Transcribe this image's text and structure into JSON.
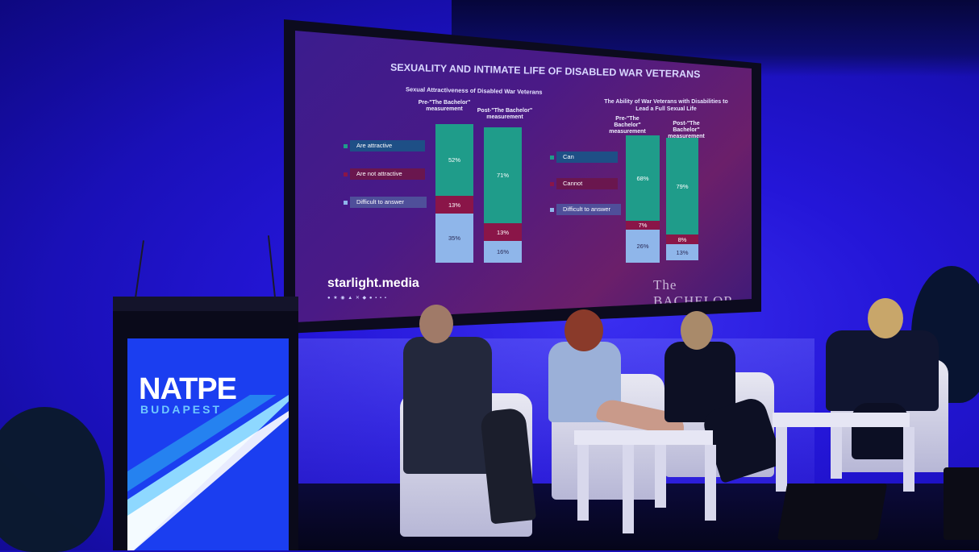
{
  "slide": {
    "title": "SEXUALITY AND INTIMATE LIFE OF DISABLED WAR VETERANS",
    "left_chart_title": "Sexual Attractiveness of Disabled War Veterans",
    "right_chart_title": "The Ability of War Veterans with Disabilities to Lead a Full Sexual Life",
    "pre_label": "Pre-\"The Bachelor\" measurement",
    "post_label": "Post-\"The Bachelor\" measurement",
    "left_legend": [
      "Are attractive",
      "Are not attractive",
      "Difficult to answer"
    ],
    "right_legend": [
      "Can",
      "Cannot",
      "Difficult to answer"
    ],
    "left_pre": [
      "52%",
      "13%",
      "35%"
    ],
    "left_post": [
      "71%",
      "13%",
      "16%"
    ],
    "right_pre": [
      "68%",
      "7%",
      "26%"
    ],
    "right_post": [
      "79%",
      "8%",
      "13%"
    ],
    "left_pre_values": [
      52,
      13,
      35
    ],
    "left_post_values": [
      71,
      13,
      16
    ],
    "right_pre_values": [
      68,
      7,
      26
    ],
    "right_post_values": [
      79,
      8,
      13
    ],
    "brand": "starlight.media",
    "show_logo": "The BACHELOR"
  },
  "podium": {
    "logo": "NATPE",
    "city": "BUDAPEST"
  },
  "colors": {
    "backdrop": "#1a10b8",
    "slide_green": "#1f9c8a",
    "slide_red": "#8a1548",
    "slide_blue": "#8fb6ea",
    "podium_panel": "#1b3ef0"
  }
}
